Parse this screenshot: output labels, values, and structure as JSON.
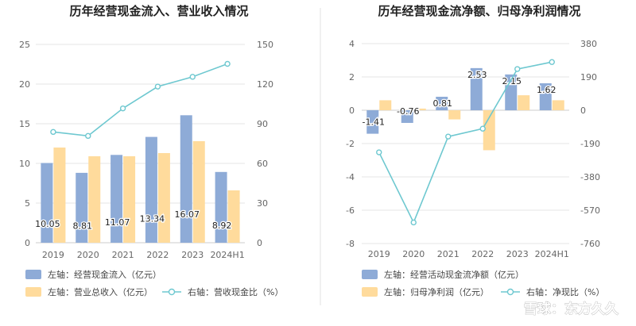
{
  "watermark": {
    "text": "雪球：东方久久"
  },
  "colors": {
    "bar_primary": "#8eabd7",
    "bar_secondary": "#ffdb9c",
    "line": "#6ec8d0",
    "grid": "#e4e4e4",
    "axis": "#cccccc",
    "divider": "#e0e0e0"
  },
  "chart_data": [
    {
      "type": "bar",
      "title": "历年经营现金流入、营业收入情况",
      "categories": [
        "2019",
        "2020",
        "2021",
        "2022",
        "2023",
        "2024H1"
      ],
      "y_left": {
        "ticks": [
          "0",
          "5",
          "10",
          "15",
          "20",
          "25"
        ],
        "lim": [
          0,
          25
        ]
      },
      "y_right": {
        "ticks": [
          "0",
          "30",
          "60",
          "90",
          "120",
          "150"
        ],
        "lim": [
          0,
          150
        ]
      },
      "bar_series": [
        {
          "name": "左轴：经营现金流入（亿元）",
          "values": [
            10.05,
            8.81,
            11.07,
            13.34,
            16.07,
            8.92
          ],
          "labels": [
            "10.05",
            "8.81",
            "11.07",
            "13.34",
            "16.07",
            "8.92"
          ]
        },
        {
          "name": "左轴：营业总收入（亿元）",
          "values": [
            12.0,
            10.9,
            10.9,
            11.3,
            12.8,
            6.6
          ]
        }
      ],
      "line_series": {
        "name": "右轴：营收现金比（%）",
        "values": [
          83.8,
          80.8,
          101.6,
          118.1,
          125.5,
          135.3
        ]
      },
      "grid": true,
      "legend": "bottom"
    },
    {
      "type": "bar",
      "title": "历年经营现金流净额、归母净利润情况",
      "categories": [
        "2019",
        "2020",
        "2021",
        "2022",
        "2023",
        "2024H1"
      ],
      "y_left": {
        "ticks": [
          "-8",
          "-6",
          "-4",
          "-2",
          "0",
          "2",
          "4"
        ],
        "lim": [
          -8,
          4
        ]
      },
      "y_right": {
        "ticks": [
          "-760",
          "-570",
          "-380",
          "-190",
          "0",
          "190",
          "380"
        ],
        "lim": [
          -760,
          380
        ]
      },
      "bar_series": [
        {
          "name": "左轴：经营活动现金流净额（亿元）",
          "values": [
            -1.41,
            -0.76,
            0.81,
            2.53,
            2.15,
            1.62
          ],
          "labels": [
            "-1.41",
            "-0.76",
            "0.81",
            "2.53",
            "2.15",
            "1.62"
          ]
        },
        {
          "name": "左轴：归母净利润（亿元）",
          "values": [
            0.6,
            0.1,
            -0.55,
            -2.4,
            0.9,
            0.6
          ]
        }
      ],
      "line_series": {
        "name": "右轴：净现比（%）",
        "values": [
          -240,
          -640,
          -150,
          -105,
          235,
          275
        ]
      },
      "grid": true,
      "legend": "bottom"
    }
  ]
}
